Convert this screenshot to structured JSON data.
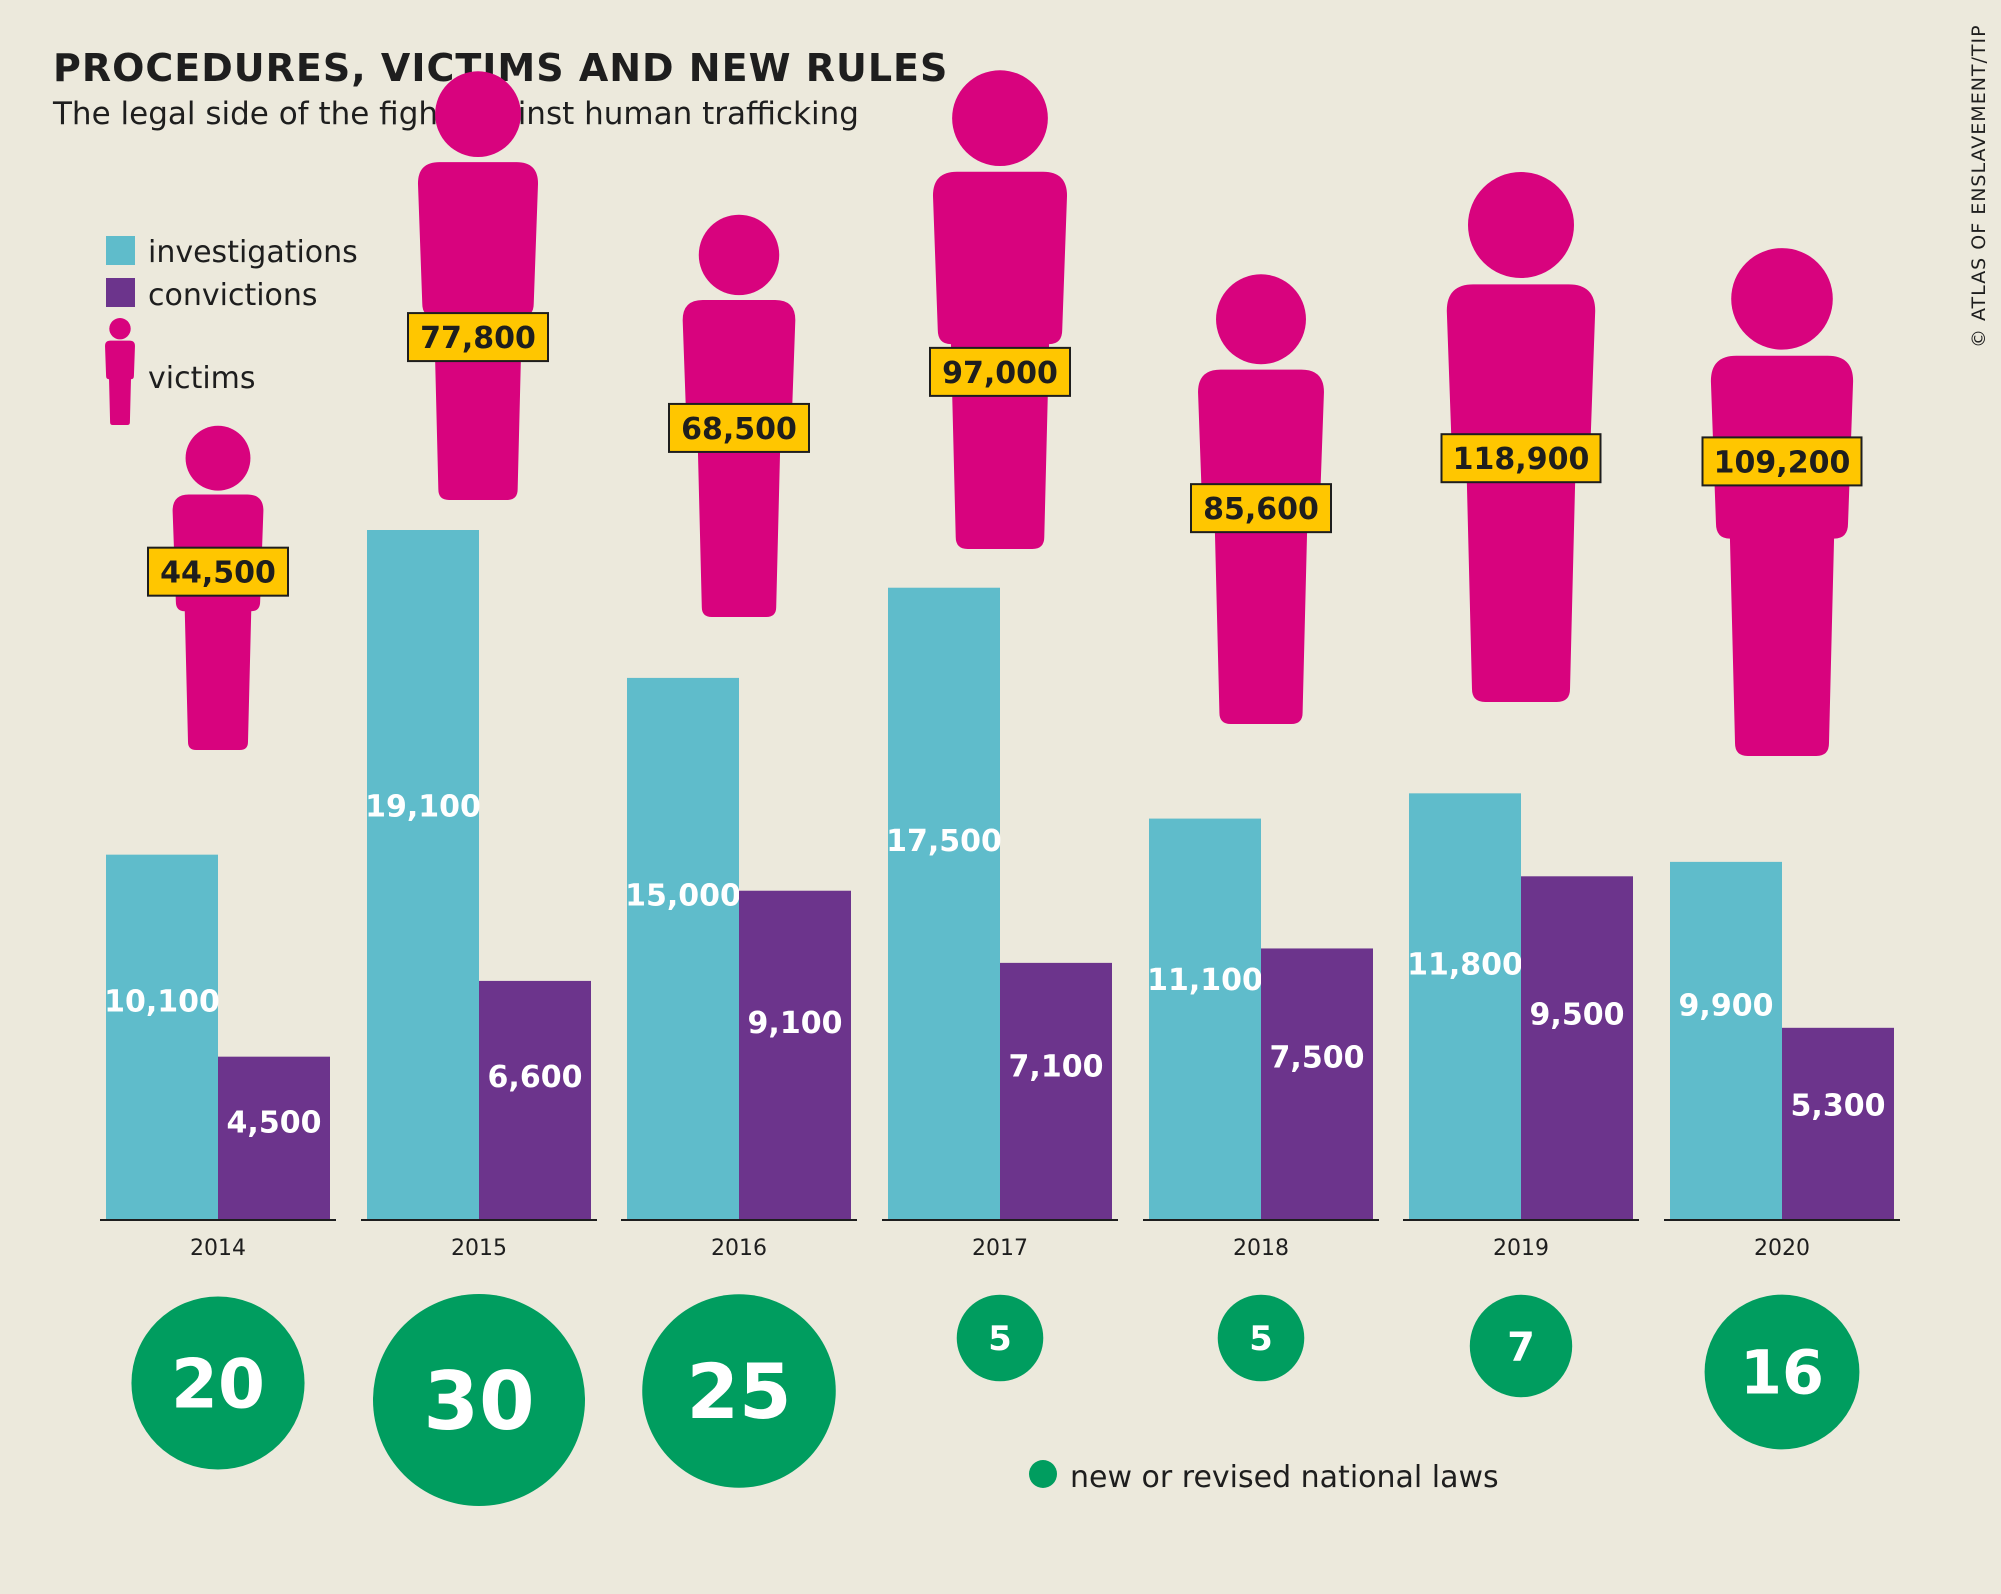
{
  "title": "PROCEDURES, VICTIMS AND NEW RULES",
  "subtitle": "The legal side of the fight against human trafficking",
  "credit": "© ATLAS OF ENSLAVEMENT/TIP",
  "legend": {
    "investigations": "investigations",
    "convictions": "convictions",
    "victims": "victims",
    "laws": "new or revised national laws"
  },
  "colors": {
    "background": "#ECE9DC",
    "investigations": "#5FBCCB",
    "convictions": "#6C348C",
    "victims": "#D8037E",
    "victim_label_bg": "#FFC600",
    "laws": "#009D5F",
    "text": "#1E1E1E"
  },
  "chart_data": {
    "type": "bar",
    "categories": [
      "2014",
      "2015",
      "2016",
      "2017",
      "2018",
      "2019",
      "2020"
    ],
    "series": [
      {
        "name": "investigations",
        "values": [
          10100,
          19100,
          15000,
          17500,
          11100,
          11800,
          9900
        ],
        "labels": [
          "10,100",
          "19,100",
          "15,000",
          "17,500",
          "11,100",
          "11,800",
          "9,900"
        ]
      },
      {
        "name": "convictions",
        "values": [
          4500,
          6600,
          9100,
          7100,
          7500,
          9500,
          5300
        ],
        "labels": [
          "4,500",
          "6,600",
          "9,100",
          "7,100",
          "7,500",
          "9,500",
          "5,300"
        ]
      },
      {
        "name": "victims",
        "values": [
          44500,
          77800,
          68500,
          97000,
          85600,
          118900,
          109200
        ],
        "labels": [
          "44,500",
          "77,800",
          "68,500",
          "97,000",
          "85,600",
          "118,900",
          "109,200"
        ]
      },
      {
        "name": "new or revised national laws",
        "values": [
          20,
          30,
          25,
          5,
          5,
          7,
          16
        ],
        "labels": [
          "20",
          "30",
          "25",
          "5",
          "5",
          "7",
          "16"
        ]
      }
    ],
    "ylim": [
      0,
      19100
    ]
  }
}
